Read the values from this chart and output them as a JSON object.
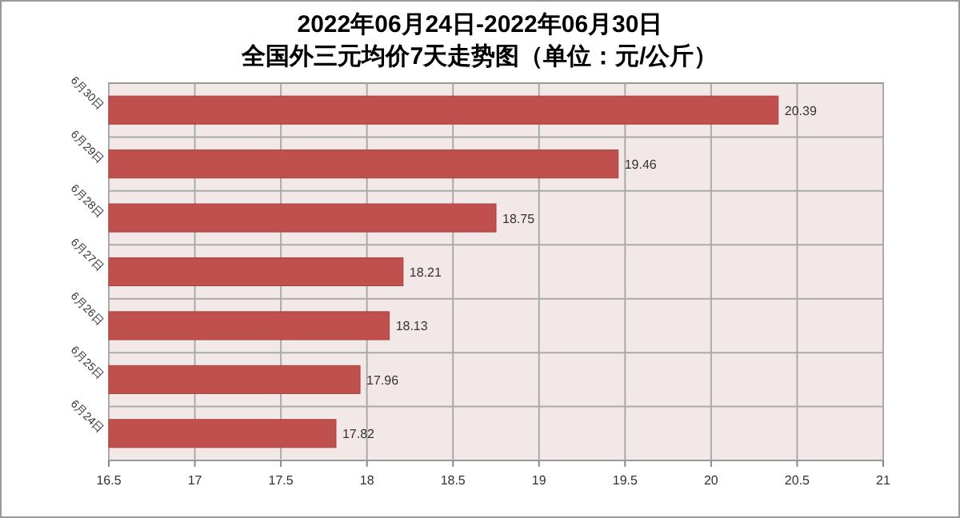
{
  "chart_data": {
    "type": "bar",
    "orientation": "horizontal",
    "title": "2022年06月24日-2022年06月30日",
    "subtitle": "全国外三元均价7天走势图（单位：元/公斤）",
    "categories": [
      "6月30日",
      "6月29日",
      "6月28日",
      "6月27日",
      "6月26日",
      "6月25日",
      "6月24日"
    ],
    "values": [
      20.39,
      19.46,
      18.75,
      18.21,
      18.13,
      17.96,
      17.82
    ],
    "color": "#c0504d",
    "data_labels": true,
    "xlim": [
      16.5,
      21
    ],
    "xticks": [
      16.5,
      17,
      17.5,
      18,
      18.5,
      19,
      19.5,
      20,
      20.5,
      21
    ],
    "grid": true
  }
}
